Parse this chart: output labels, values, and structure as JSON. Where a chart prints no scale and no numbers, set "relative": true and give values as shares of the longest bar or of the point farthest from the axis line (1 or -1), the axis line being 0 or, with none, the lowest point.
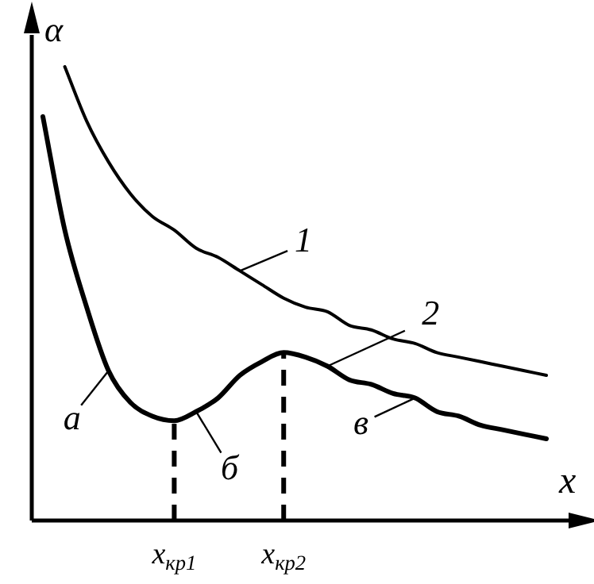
{
  "chart_data": {
    "type": "line",
    "relative": true,
    "xlabel": "x",
    "ylabel": "α",
    "categories": [
      null,
      null,
      null,
      null,
      null,
      null,
      "x$_{кр1}$",
      null,
      null,
      null,
      null,
      "x$_{кр2}$",
      null,
      null,
      null,
      null,
      null,
      null,
      null,
      null,
      null,
      null,
      null,
      null
    ],
    "ref_lines": [
      {
        "axis": "x",
        "value": "x$_{кр1}$",
        "line_style": "dashed"
      },
      {
        "axis": "x",
        "value": "x$_{кр2}$",
        "line_style": "dashed"
      }
    ],
    "series": [
      {
        "color": "#000000",
        "values": [
          null,
          1,
          0.88,
          0.79,
          0.72,
          0.67,
          0.64,
          0.6,
          0.58,
          0.55,
          0.52,
          0.49,
          0.47,
          0.46,
          0.43,
          0.42,
          0.4,
          0.39,
          0.37,
          0.36,
          0.35,
          0.34,
          0.33,
          0.32
        ]
      },
      {
        "color": "#000000",
        "values": [
          0.89,
          0.64,
          0.47,
          0.33,
          0.26,
          0.23,
          0.22,
          0.24,
          0.27,
          0.32,
          0.35,
          0.37,
          0.36,
          0.34,
          0.31,
          0.3,
          0.28,
          0.27,
          0.24,
          0.23,
          0.21,
          0.2,
          0.19,
          0.18
        ]
      }
    ],
    "annotations": [
      "1",
      "2",
      "а",
      "б",
      "в"
    ],
    "grid": false,
    "legend": false,
    "marker": "none",
    "line_style": "solid"
  }
}
